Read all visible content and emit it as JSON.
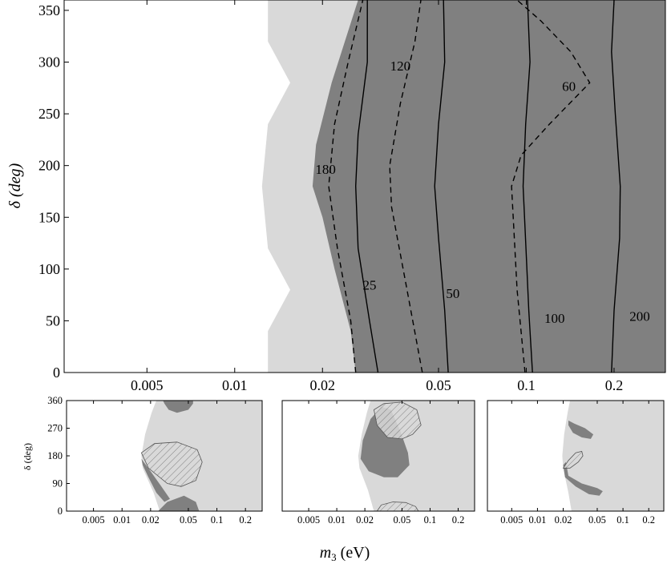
{
  "chart_data": [
    {
      "panel": "main",
      "type": "area",
      "x_scale": "log",
      "xlim": [
        0.0026,
        0.3
      ],
      "ylim": [
        0,
        360
      ],
      "ylabel": "δ (deg)",
      "x_ticks": [
        "0.005",
        "0.01",
        "0.02",
        "0.05",
        "0.1",
        "0.2"
      ],
      "x_tick_values": [
        0.005,
        0.01,
        0.02,
        0.05,
        0.1,
        0.2
      ],
      "y_ticks": [
        "0",
        "50",
        "100",
        "150",
        "200",
        "250",
        "300",
        "350"
      ],
      "y_tick_values": [
        0,
        50,
        100,
        150,
        200,
        250,
        300,
        350
      ],
      "colors": {
        "light_region": "#d9d9d9",
        "dark_region": "#808080",
        "contour": "#000000"
      },
      "regions": [
        {
          "shade": "light",
          "left_boundary": [
            [
              0.013,
              0
            ],
            [
              0.013,
              40
            ],
            [
              0.0155,
              80
            ],
            [
              0.013,
              120
            ],
            [
              0.0124,
              180
            ],
            [
              0.013,
              240
            ],
            [
              0.0155,
              280
            ],
            [
              0.013,
              320
            ],
            [
              0.013,
              360
            ]
          ]
        },
        {
          "shade": "dark",
          "left_boundary": [
            [
              0.026,
              0
            ],
            [
              0.025,
              40
            ],
            [
              0.022,
              100
            ],
            [
              0.02,
              150
            ],
            [
              0.0185,
              180
            ],
            [
              0.019,
              220
            ],
            [
              0.0215,
              280
            ],
            [
              0.0245,
              330
            ],
            [
              0.0265,
              360
            ]
          ]
        }
      ],
      "contours": [
        {
          "label": "25",
          "style": "solid",
          "points": [
            [
              0.031,
              0
            ],
            [
              0.029,
              50
            ],
            [
              0.0265,
              120
            ],
            [
              0.026,
              180
            ],
            [
              0.0265,
              230
            ],
            [
              0.0285,
              300
            ],
            [
              0.0285,
              360
            ]
          ],
          "label_at": [
            0.029,
            80
          ]
        },
        {
          "label": "50",
          "style": "solid",
          "points": [
            [
              0.054,
              0
            ],
            [
              0.0525,
              60
            ],
            [
              0.05,
              130
            ],
            [
              0.0485,
              180
            ],
            [
              0.05,
              240
            ],
            [
              0.0525,
              300
            ],
            [
              0.052,
              360
            ]
          ],
          "label_at": [
            0.056,
            72
          ]
        },
        {
          "label": "100",
          "style": "solid",
          "points": [
            [
              0.105,
              0
            ],
            [
              0.102,
              60
            ],
            [
              0.099,
              140
            ],
            [
              0.0975,
              180
            ],
            [
              0.0995,
              240
            ],
            [
              0.103,
              300
            ],
            [
              0.101,
              360
            ]
          ],
          "label_at": [
            0.125,
            48
          ]
        },
        {
          "label": "200",
          "style": "solid",
          "points": [
            [
              0.196,
              0
            ],
            [
              0.2,
              60
            ],
            [
              0.209,
              130
            ],
            [
              0.21,
              180
            ],
            [
              0.202,
              250
            ],
            [
              0.196,
              310
            ],
            [
              0.2,
              360
            ]
          ],
          "label_at": [
            0.245,
            50
          ]
        },
        {
          "label": "180",
          "style": "dashed",
          "points": [
            [
              0.026,
              0
            ],
            [
              0.025,
              50
            ],
            [
              0.0225,
              120
            ],
            [
              0.021,
              180
            ],
            [
              0.022,
              240
            ],
            [
              0.0245,
              300
            ],
            [
              0.0275,
              360
            ]
          ],
          "label_at": [
            0.0205,
            192
          ]
        },
        {
          "label": "120",
          "style": "dashed",
          "points": [
            [
              0.044,
              0
            ],
            [
              0.039,
              80
            ],
            [
              0.0345,
              160
            ],
            [
              0.034,
              200
            ],
            [
              0.037,
              260
            ],
            [
              0.0415,
              320
            ],
            [
              0.0435,
              360
            ]
          ],
          "label_at": [
            0.037,
            292
          ]
        },
        {
          "label": "60",
          "style": "dashed",
          "points": [
            [
              0.099,
              0
            ],
            [
              0.093,
              80
            ],
            [
              0.089,
              180
            ],
            [
              0.096,
              210
            ],
            [
              0.12,
              240
            ],
            [
              0.165,
              280
            ],
            [
              0.142,
              310
            ],
            [
              0.112,
              340
            ],
            [
              0.093,
              360
            ]
          ],
          "label_at": [
            0.14,
            272
          ]
        }
      ]
    },
    {
      "panel": "bottom-left",
      "type": "area",
      "x_scale": "log",
      "xlim": [
        0.0026,
        0.3
      ],
      "ylim": [
        0,
        360
      ],
      "ylabel": "δ (deg)",
      "x_ticks": [
        "0.005",
        "0.01",
        "0.02",
        "0.05",
        "0.1",
        "0.2"
      ],
      "x_tick_values": [
        0.005,
        0.01,
        0.02,
        0.05,
        0.1,
        0.2
      ],
      "y_ticks": [
        "0",
        "90",
        "180",
        "270",
        "360"
      ],
      "y_tick_values": [
        0,
        90,
        180,
        270,
        360
      ],
      "light_left_boundary": [
        [
          0.025,
          0
        ],
        [
          0.0215,
          60
        ],
        [
          0.0165,
          140
        ],
        [
          0.016,
          180
        ],
        [
          0.0175,
          250
        ],
        [
          0.0205,
          320
        ],
        [
          0.023,
          360
        ]
      ],
      "dark_regions": [
        [
          [
            0.024,
            0
          ],
          [
            0.03,
            30
          ],
          [
            0.045,
            50
          ],
          [
            0.06,
            30
          ],
          [
            0.065,
            0
          ]
        ],
        [
          [
            0.028,
            350
          ],
          [
            0.031,
            330
          ],
          [
            0.038,
            320
          ],
          [
            0.05,
            330
          ],
          [
            0.056,
            350
          ],
          [
            0.056,
            360
          ],
          [
            0.027,
            360
          ]
        ],
        [
          [
            0.016,
            170
          ],
          [
            0.02,
            130
          ],
          [
            0.026,
            80
          ],
          [
            0.032,
            40
          ],
          [
            0.028,
            30
          ],
          [
            0.023,
            60
          ],
          [
            0.019,
            110
          ],
          [
            0.0165,
            150
          ]
        ]
      ],
      "hatched_regions": [
        [
          [
            0.016,
            190
          ],
          [
            0.022,
            220
          ],
          [
            0.038,
            225
          ],
          [
            0.062,
            200
          ],
          [
            0.07,
            160
          ],
          [
            0.06,
            100
          ],
          [
            0.042,
            80
          ],
          [
            0.03,
            90
          ],
          [
            0.019,
            140
          ]
        ]
      ]
    },
    {
      "panel": "bottom-middle",
      "type": "area",
      "x_scale": "log",
      "xlim": [
        0.0026,
        0.3
      ],
      "ylim": [
        0,
        360
      ],
      "x_ticks": [
        "0.005",
        "0.01",
        "0.02",
        "0.05",
        "0.1",
        "0.2"
      ],
      "x_tick_values": [
        0.005,
        0.01,
        0.02,
        0.05,
        0.1,
        0.2
      ],
      "light_left_boundary": [
        [
          0.025,
          0
        ],
        [
          0.0215,
          70
        ],
        [
          0.0175,
          140
        ],
        [
          0.017,
          180
        ],
        [
          0.0185,
          250
        ],
        [
          0.021,
          320
        ],
        [
          0.023,
          360
        ]
      ],
      "dark_regions": [
        [
          [
            0.018,
            170
          ],
          [
            0.019,
            230
          ],
          [
            0.023,
            300
          ],
          [
            0.03,
            340
          ],
          [
            0.038,
            330
          ],
          [
            0.048,
            260
          ],
          [
            0.058,
            190
          ],
          [
            0.06,
            150
          ],
          [
            0.045,
            110
          ],
          [
            0.032,
            110
          ],
          [
            0.022,
            130
          ]
        ]
      ],
      "hatched_regions": [
        [
          [
            0.025,
            330
          ],
          [
            0.032,
            350
          ],
          [
            0.05,
            355
          ],
          [
            0.072,
            330
          ],
          [
            0.08,
            280
          ],
          [
            0.065,
            250
          ],
          [
            0.05,
            235
          ],
          [
            0.035,
            240
          ],
          [
            0.027,
            280
          ]
        ],
        [
          [
            0.027,
            0
          ],
          [
            0.03,
            20
          ],
          [
            0.04,
            30
          ],
          [
            0.055,
            28
          ],
          [
            0.07,
            15
          ],
          [
            0.075,
            0
          ]
        ]
      ]
    },
    {
      "panel": "bottom-right",
      "type": "area",
      "x_scale": "log",
      "xlim": [
        0.0026,
        0.3
      ],
      "ylim": [
        0,
        360
      ],
      "x_ticks": [
        "0.005",
        "0.01",
        "0.02",
        "0.05",
        "0.1",
        "0.2"
      ],
      "x_tick_values": [
        0.005,
        0.01,
        0.02,
        0.05,
        0.1,
        0.2
      ],
      "light_left_boundary": [
        [
          0.025,
          0
        ],
        [
          0.023,
          60
        ],
        [
          0.02,
          140
        ],
        [
          0.0195,
          180
        ],
        [
          0.0205,
          250
        ],
        [
          0.0225,
          320
        ],
        [
          0.024,
          360
        ]
      ],
      "dark_regions": [
        [
          [
            0.023,
            295
          ],
          [
            0.027,
            285
          ],
          [
            0.036,
            270
          ],
          [
            0.045,
            250
          ],
          [
            0.042,
            235
          ],
          [
            0.033,
            240
          ],
          [
            0.026,
            255
          ],
          [
            0.023,
            280
          ]
        ],
        [
          [
            0.02,
            150
          ],
          [
            0.0215,
            160
          ],
          [
            0.023,
            115
          ],
          [
            0.033,
            90
          ],
          [
            0.05,
            75
          ],
          [
            0.058,
            65
          ],
          [
            0.053,
            50
          ],
          [
            0.04,
            55
          ],
          [
            0.028,
            80
          ],
          [
            0.021,
            110
          ]
        ]
      ],
      "hatched_regions": [
        [
          [
            0.02,
            140
          ],
          [
            0.023,
            165
          ],
          [
            0.028,
            190
          ],
          [
            0.033,
            195
          ],
          [
            0.034,
            180
          ],
          [
            0.03,
            160
          ],
          [
            0.024,
            140
          ]
        ]
      ]
    }
  ],
  "shared_xlabel": "m3 (eV)"
}
